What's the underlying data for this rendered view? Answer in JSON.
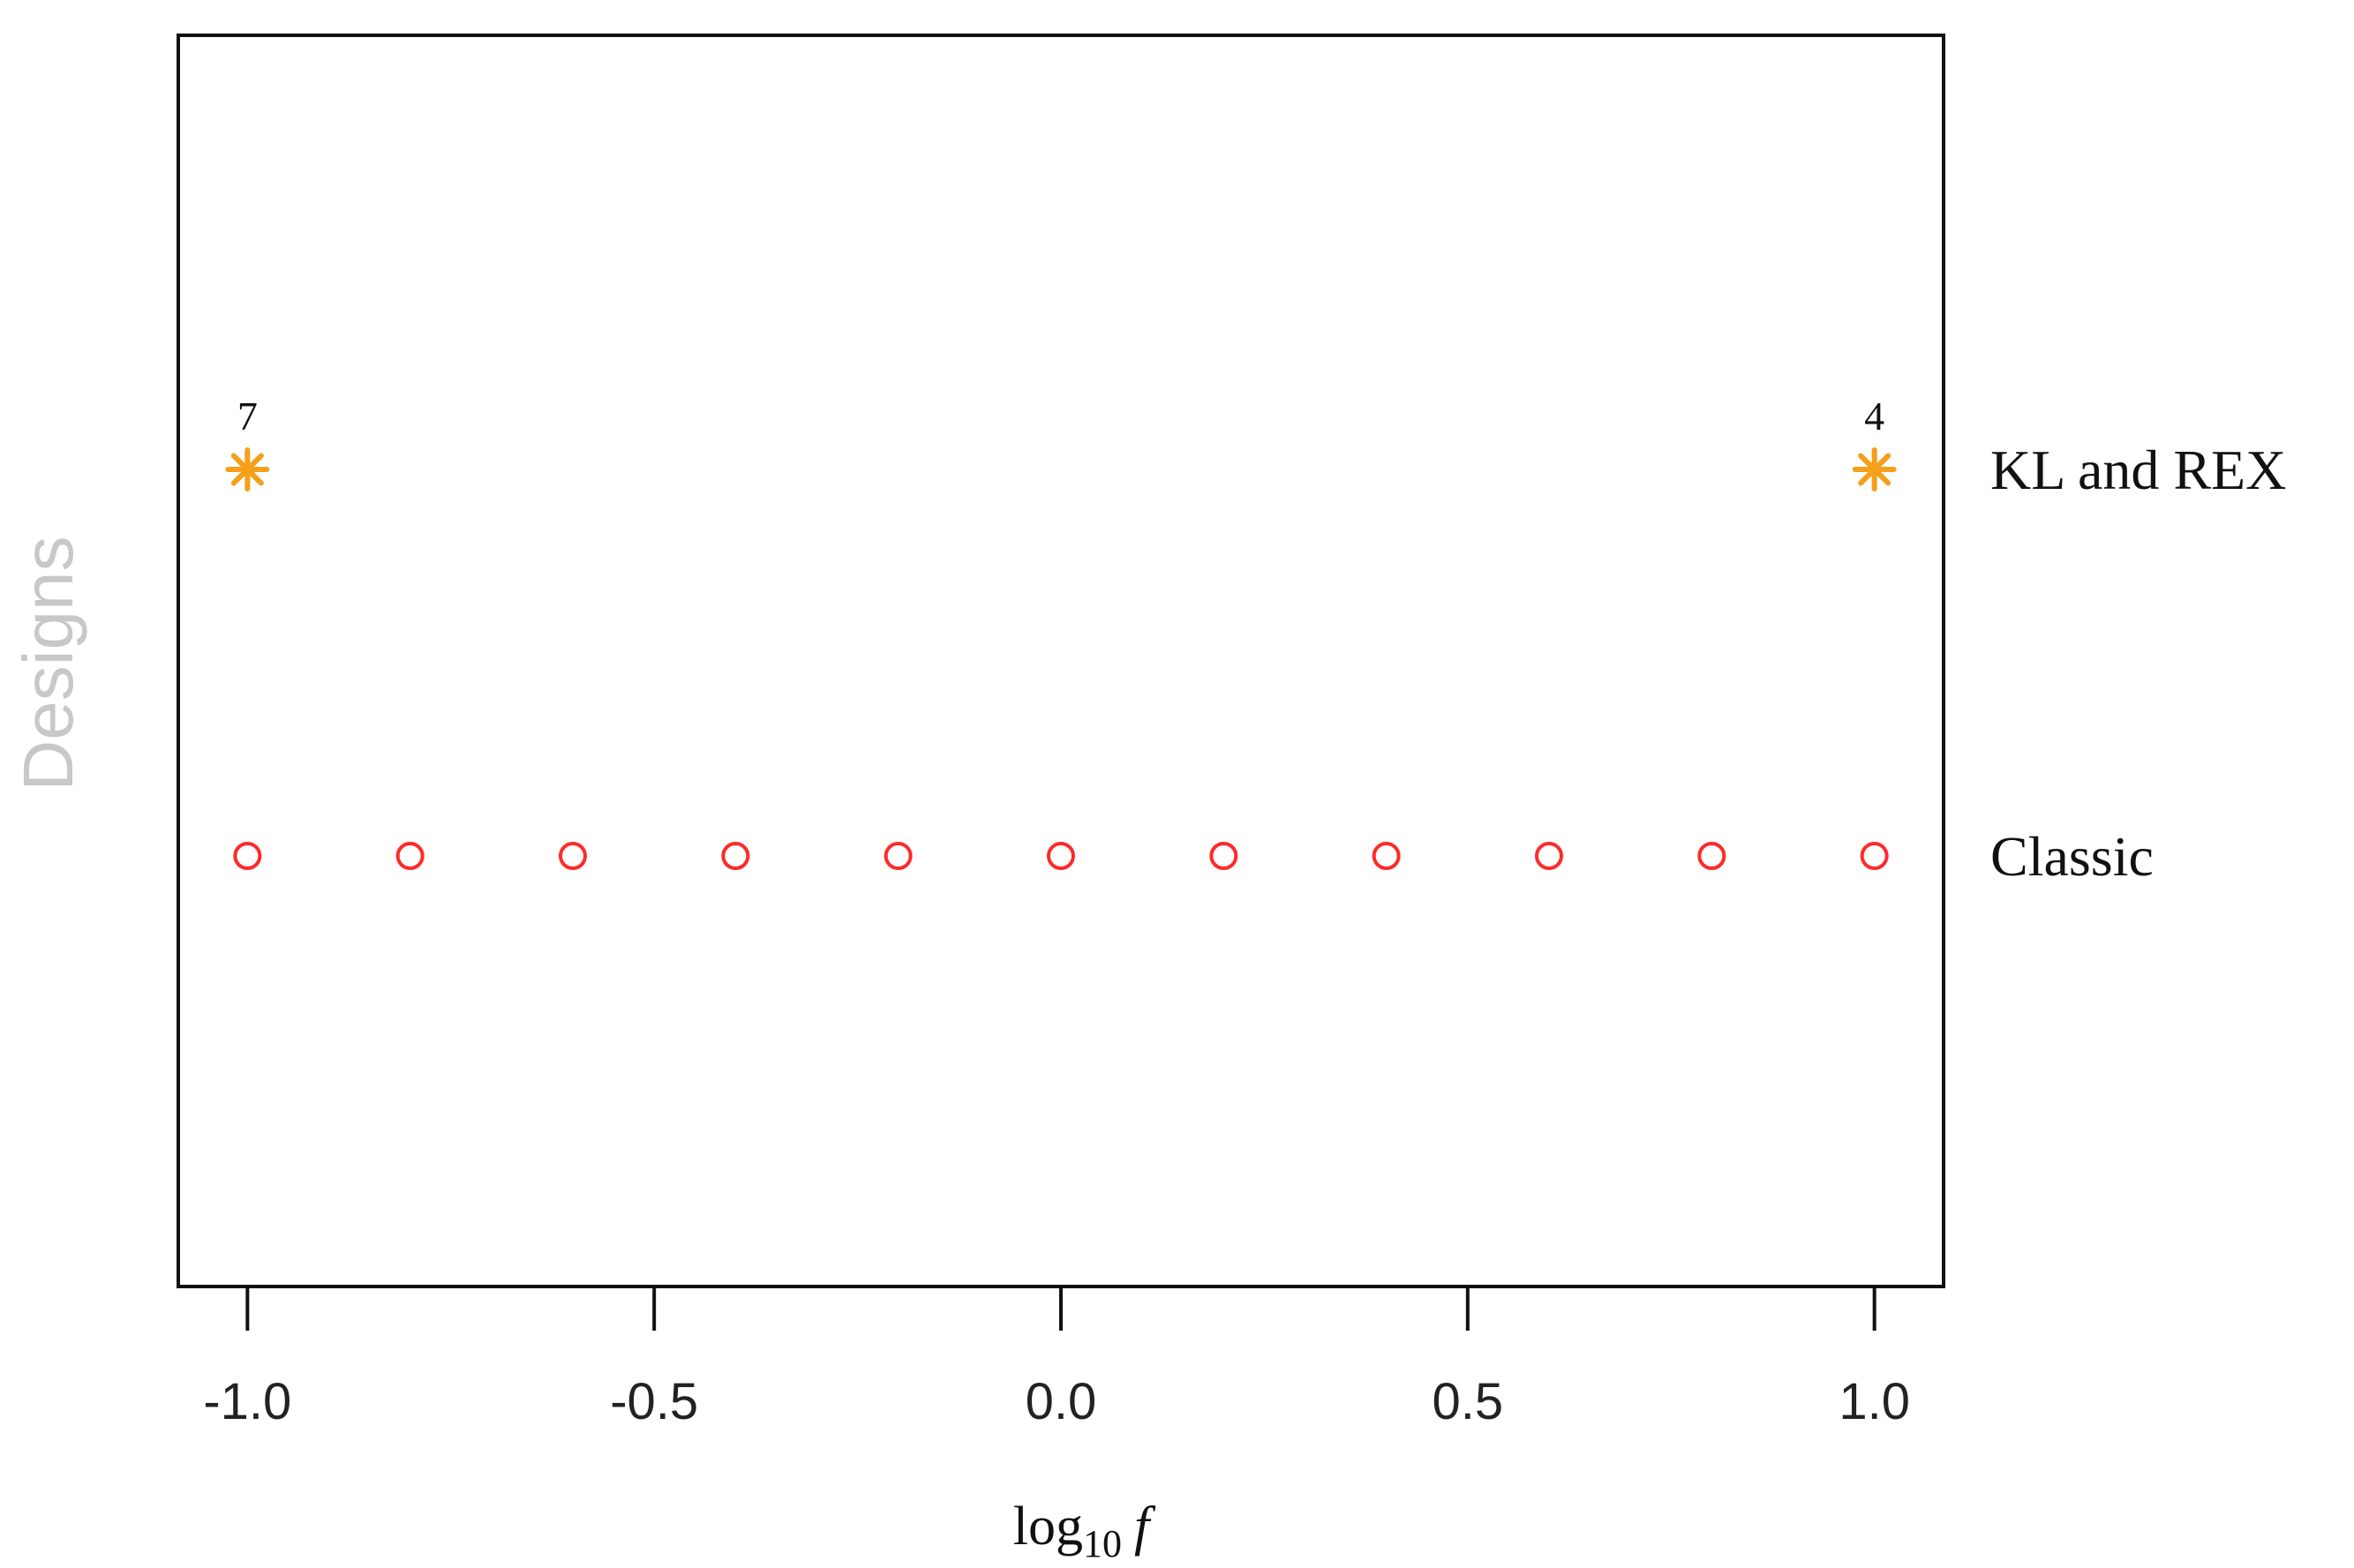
{
  "chart_data": {
    "type": "scatter",
    "xlabel_base": "log",
    "xlabel_sub": "10",
    "xlabel_var": "f",
    "ylabel": "Designs",
    "xlim": [
      -1.085,
      1.085
    ],
    "ticks": [
      {
        "v": -1.0,
        "label": "-1.0"
      },
      {
        "v": -0.5,
        "label": "-0.5"
      },
      {
        "v": 0.0,
        "label": "0.0"
      },
      {
        "v": 0.5,
        "label": "0.5"
      },
      {
        "v": 1.0,
        "label": "1.0"
      }
    ],
    "rows": [
      {
        "label": "KL and REX",
        "marker": "asterisk",
        "color": "#f5a01a",
        "points": [
          {
            "x": -1.0,
            "count": "7"
          },
          {
            "x": 1.0,
            "count": "4"
          }
        ]
      },
      {
        "label": "Classic",
        "marker": "open-circle",
        "color": "#ff2a2a",
        "points": [
          {
            "x": -1.0
          },
          {
            "x": -0.8
          },
          {
            "x": -0.6
          },
          {
            "x": -0.4
          },
          {
            "x": -0.2
          },
          {
            "x": 0.0
          },
          {
            "x": 0.2
          },
          {
            "x": 0.4
          },
          {
            "x": 0.6
          },
          {
            "x": 0.8
          },
          {
            "x": 1.0
          }
        ]
      }
    ]
  }
}
